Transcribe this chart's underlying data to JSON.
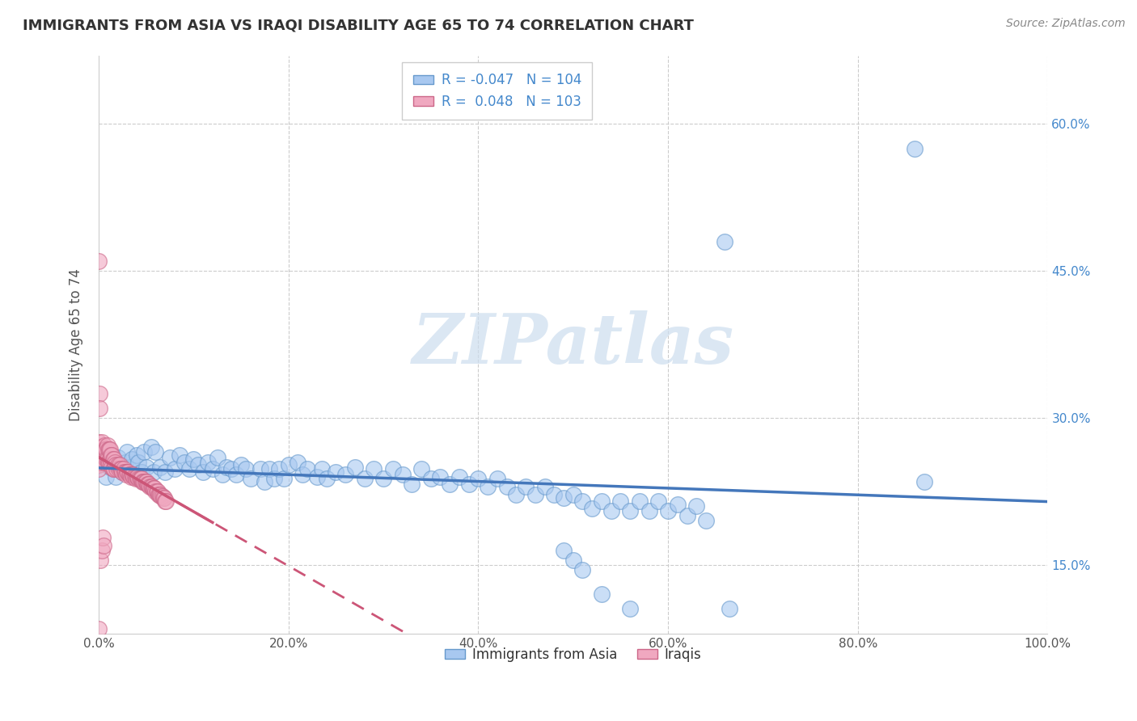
{
  "title": "IMMIGRANTS FROM ASIA VS IRAQI DISABILITY AGE 65 TO 74 CORRELATION CHART",
  "source": "Source: ZipAtlas.com",
  "ylabel": "Disability Age 65 to 74",
  "xlim": [
    0.0,
    1.0
  ],
  "ylim": [
    0.08,
    0.67
  ],
  "xticks": [
    0.0,
    0.2,
    0.4,
    0.6,
    0.8,
    1.0
  ],
  "xtick_labels": [
    "0.0%",
    "20.0%",
    "40.0%",
    "60.0%",
    "80.0%",
    "100.0%"
  ],
  "yticks": [
    0.15,
    0.3,
    0.45,
    0.6
  ],
  "ytick_labels": [
    "15.0%",
    "30.0%",
    "45.0%",
    "60.0%"
  ],
  "legend1_label": "Immigrants from Asia",
  "legend2_label": "Iraqis",
  "r1": -0.047,
  "n1": 104,
  "r2": 0.048,
  "n2": 103,
  "dot_color_asia": "#a8c8f0",
  "dot_color_iraq": "#f0a8c0",
  "edge_color_asia": "#6699cc",
  "edge_color_iraq": "#cc6688",
  "line_color_asia": "#4477bb",
  "line_color_iraq": "#cc5577",
  "watermark": "ZIPatlas",
  "background_color": "#ffffff",
  "grid_color": "#cccccc",
  "asia_x": [
    0.005,
    0.008,
    0.01,
    0.012,
    0.015,
    0.018,
    0.02,
    0.022,
    0.025,
    0.028,
    0.03,
    0.032,
    0.035,
    0.038,
    0.04,
    0.042,
    0.045,
    0.048,
    0.05,
    0.055,
    0.058,
    0.06,
    0.065,
    0.07,
    0.075,
    0.08,
    0.085,
    0.09,
    0.095,
    0.1,
    0.105,
    0.11,
    0.115,
    0.12,
    0.125,
    0.13,
    0.135,
    0.14,
    0.145,
    0.15,
    0.155,
    0.16,
    0.17,
    0.175,
    0.18,
    0.185,
    0.19,
    0.195,
    0.2,
    0.21,
    0.215,
    0.22,
    0.23,
    0.235,
    0.24,
    0.25,
    0.26,
    0.27,
    0.28,
    0.29,
    0.3,
    0.31,
    0.32,
    0.33,
    0.34,
    0.35,
    0.36,
    0.37,
    0.38,
    0.39,
    0.4,
    0.41,
    0.42,
    0.43,
    0.44,
    0.45,
    0.46,
    0.47,
    0.48,
    0.49,
    0.5,
    0.51,
    0.52,
    0.53,
    0.54,
    0.55,
    0.56,
    0.57,
    0.58,
    0.59,
    0.6,
    0.61,
    0.62,
    0.63,
    0.64,
    0.49,
    0.5,
    0.51,
    0.86,
    0.87,
    0.53,
    0.56,
    0.66,
    0.665
  ],
  "asia_y": [
    0.26,
    0.24,
    0.265,
    0.25,
    0.255,
    0.24,
    0.26,
    0.25,
    0.245,
    0.255,
    0.265,
    0.248,
    0.258,
    0.242,
    0.262,
    0.255,
    0.245,
    0.265,
    0.25,
    0.27,
    0.245,
    0.265,
    0.25,
    0.245,
    0.26,
    0.248,
    0.262,
    0.255,
    0.248,
    0.258,
    0.252,
    0.245,
    0.255,
    0.248,
    0.26,
    0.242,
    0.25,
    0.248,
    0.242,
    0.252,
    0.248,
    0.238,
    0.248,
    0.235,
    0.248,
    0.238,
    0.248,
    0.238,
    0.252,
    0.255,
    0.242,
    0.248,
    0.24,
    0.248,
    0.238,
    0.245,
    0.242,
    0.25,
    0.238,
    0.248,
    0.238,
    0.248,
    0.242,
    0.232,
    0.248,
    0.238,
    0.24,
    0.232,
    0.24,
    0.232,
    0.238,
    0.23,
    0.238,
    0.23,
    0.222,
    0.23,
    0.222,
    0.23,
    0.222,
    0.218,
    0.222,
    0.215,
    0.208,
    0.215,
    0.205,
    0.215,
    0.205,
    0.215,
    0.205,
    0.215,
    0.205,
    0.212,
    0.2,
    0.21,
    0.195,
    0.165,
    0.155,
    0.145,
    0.575,
    0.235,
    0.12,
    0.105,
    0.48,
    0.105
  ],
  "iraq_x": [
    0.0,
    0.0,
    0.0,
    0.0,
    0.0,
    0.0,
    0.0,
    0.0,
    0.0,
    0.0,
    0.002,
    0.002,
    0.003,
    0.003,
    0.004,
    0.004,
    0.005,
    0.005,
    0.006,
    0.006,
    0.007,
    0.007,
    0.008,
    0.008,
    0.009,
    0.009,
    0.01,
    0.01,
    0.011,
    0.011,
    0.012,
    0.012,
    0.013,
    0.013,
    0.014,
    0.014,
    0.015,
    0.015,
    0.016,
    0.016,
    0.017,
    0.018,
    0.019,
    0.02,
    0.021,
    0.022,
    0.023,
    0.024,
    0.025,
    0.026,
    0.027,
    0.028,
    0.029,
    0.03,
    0.031,
    0.032,
    0.033,
    0.034,
    0.035,
    0.036,
    0.037,
    0.038,
    0.039,
    0.04,
    0.041,
    0.042,
    0.043,
    0.044,
    0.045,
    0.046,
    0.047,
    0.048,
    0.049,
    0.05,
    0.051,
    0.052,
    0.053,
    0.054,
    0.055,
    0.056,
    0.057,
    0.058,
    0.059,
    0.06,
    0.061,
    0.062,
    0.063,
    0.064,
    0.065,
    0.066,
    0.067,
    0.068,
    0.069,
    0.07,
    0.071,
    0.001,
    0.001,
    0.002,
    0.003,
    0.004,
    0.005,
    0.0,
    0.0
  ],
  "iraq_y": [
    0.27,
    0.268,
    0.262,
    0.258,
    0.252,
    0.248,
    0.275,
    0.265,
    0.255,
    0.26,
    0.268,
    0.258,
    0.275,
    0.265,
    0.27,
    0.258,
    0.268,
    0.258,
    0.272,
    0.255,
    0.268,
    0.255,
    0.268,
    0.258,
    0.272,
    0.258,
    0.268,
    0.255,
    0.268,
    0.255,
    0.268,
    0.258,
    0.262,
    0.252,
    0.262,
    0.25,
    0.258,
    0.248,
    0.258,
    0.248,
    0.255,
    0.252,
    0.248,
    0.252,
    0.248,
    0.252,
    0.248,
    0.248,
    0.245,
    0.248,
    0.245,
    0.245,
    0.242,
    0.245,
    0.245,
    0.242,
    0.242,
    0.24,
    0.242,
    0.242,
    0.24,
    0.24,
    0.238,
    0.24,
    0.24,
    0.238,
    0.238,
    0.238,
    0.238,
    0.235,
    0.235,
    0.235,
    0.235,
    0.235,
    0.232,
    0.232,
    0.232,
    0.23,
    0.23,
    0.23,
    0.228,
    0.228,
    0.228,
    0.225,
    0.225,
    0.225,
    0.222,
    0.222,
    0.222,
    0.22,
    0.22,
    0.218,
    0.218,
    0.215,
    0.215,
    0.325,
    0.31,
    0.155,
    0.165,
    0.178,
    0.17,
    0.46,
    0.085
  ]
}
